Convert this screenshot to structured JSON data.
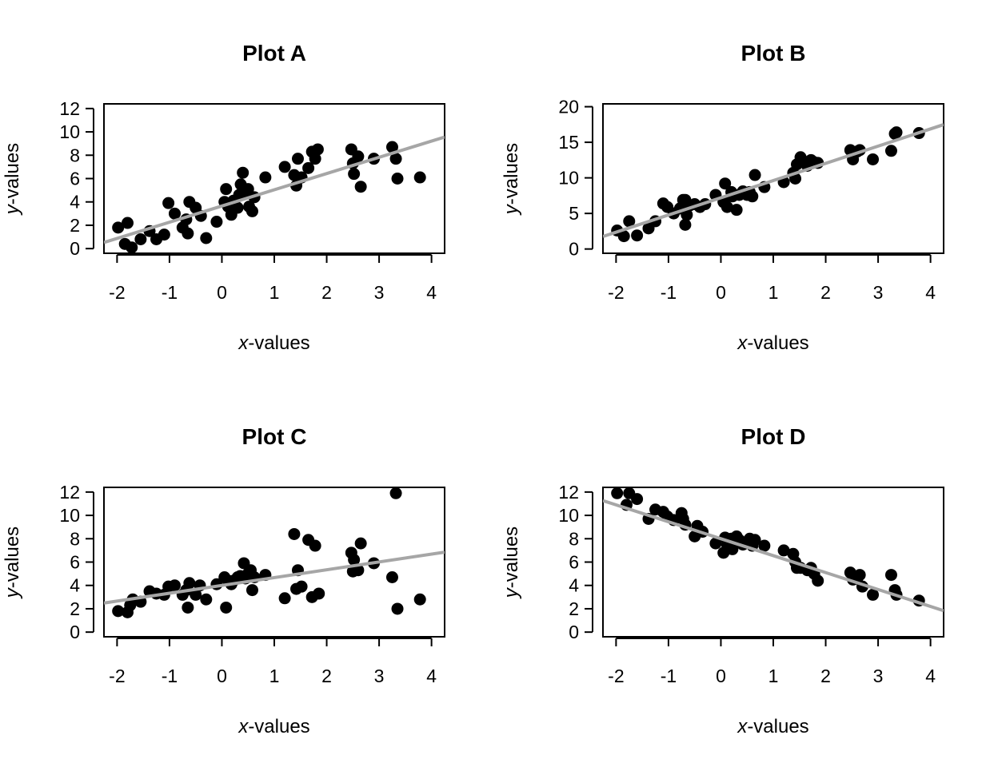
{
  "chart_data": [
    {
      "type": "scatter",
      "title": "Plot A",
      "xlabel_italic": "x",
      "xlabel_rest": "-values",
      "ylabel_italic": "y",
      "ylabel_rest": "-values",
      "xlim": [
        -2.25,
        4.25
      ],
      "ylim": [
        -0.4,
        12.4
      ],
      "xticks": [
        -2,
        -1,
        0,
        1,
        2,
        3,
        4
      ],
      "yticks": [
        0,
        2,
        4,
        6,
        8,
        10,
        12
      ],
      "fit_line": {
        "intercept": 3.65,
        "slope": 1.39
      },
      "points": [
        [
          -1.98,
          1.8
        ],
        [
          -1.85,
          0.4
        ],
        [
          -1.8,
          2.2
        ],
        [
          -1.72,
          0.1
        ],
        [
          -1.55,
          0.8
        ],
        [
          -1.38,
          1.5
        ],
        [
          -1.25,
          0.8
        ],
        [
          -1.1,
          1.2
        ],
        [
          -1.02,
          3.9
        ],
        [
          -0.9,
          3.0
        ],
        [
          -0.75,
          1.8
        ],
        [
          -0.68,
          2.5
        ],
        [
          -0.65,
          1.3
        ],
        [
          -0.62,
          4.0
        ],
        [
          -0.5,
          3.5
        ],
        [
          -0.4,
          2.8
        ],
        [
          -0.3,
          0.9
        ],
        [
          -0.1,
          2.3
        ],
        [
          0.05,
          4.0
        ],
        [
          0.08,
          5.1
        ],
        [
          0.12,
          3.6
        ],
        [
          0.18,
          2.9
        ],
        [
          0.22,
          4.1
        ],
        [
          0.3,
          3.5
        ],
        [
          0.33,
          4.6
        ],
        [
          0.36,
          5.5
        ],
        [
          0.4,
          6.5
        ],
        [
          0.45,
          4.9
        ],
        [
          0.5,
          5.1
        ],
        [
          0.52,
          3.6
        ],
        [
          0.58,
          3.2
        ],
        [
          0.62,
          4.4
        ],
        [
          0.83,
          6.1
        ],
        [
          1.2,
          7.0
        ],
        [
          1.38,
          6.3
        ],
        [
          1.42,
          5.4
        ],
        [
          1.45,
          7.7
        ],
        [
          1.52,
          6.1
        ],
        [
          1.65,
          6.9
        ],
        [
          1.72,
          8.3
        ],
        [
          1.78,
          7.7
        ],
        [
          1.83,
          8.5
        ],
        [
          2.47,
          8.5
        ],
        [
          2.5,
          7.3
        ],
        [
          2.52,
          6.4
        ],
        [
          2.6,
          7.9
        ],
        [
          2.65,
          5.3
        ],
        [
          2.9,
          7.7
        ],
        [
          3.25,
          8.7
        ],
        [
          3.32,
          7.7
        ],
        [
          3.35,
          6.0
        ],
        [
          3.78,
          6.1
        ]
      ]
    },
    {
      "type": "scatter",
      "title": "Plot B",
      "xlabel_italic": "x",
      "xlabel_rest": "-values",
      "ylabel_italic": "y",
      "ylabel_rest": "-values",
      "xlim": [
        -2.25,
        4.25
      ],
      "ylim": [
        -0.6,
        20.4
      ],
      "xticks": [
        -2,
        -1,
        0,
        1,
        2,
        3,
        4
      ],
      "yticks": [
        0,
        5,
        10,
        15,
        20
      ],
      "fit_line": {
        "intercept": 7.2,
        "slope": 2.42
      },
      "points": [
        [
          -1.98,
          2.6
        ],
        [
          -1.85,
          1.8
        ],
        [
          -1.75,
          3.9
        ],
        [
          -1.6,
          1.9
        ],
        [
          -1.38,
          2.9
        ],
        [
          -1.25,
          3.9
        ],
        [
          -1.1,
          6.4
        ],
        [
          -1.02,
          5.9
        ],
        [
          -0.9,
          5.0
        ],
        [
          -0.78,
          5.7
        ],
        [
          -0.72,
          6.9
        ],
        [
          -0.68,
          6.9
        ],
        [
          -0.68,
          3.4
        ],
        [
          -0.65,
          4.8
        ],
        [
          -0.6,
          6.1
        ],
        [
          -0.5,
          6.3
        ],
        [
          -0.4,
          5.9
        ],
        [
          -0.3,
          6.3
        ],
        [
          -0.1,
          7.6
        ],
        [
          0.05,
          6.6
        ],
        [
          0.08,
          9.2
        ],
        [
          0.12,
          5.9
        ],
        [
          0.2,
          8.0
        ],
        [
          0.22,
          7.4
        ],
        [
          0.3,
          5.5
        ],
        [
          0.35,
          7.6
        ],
        [
          0.42,
          8.1
        ],
        [
          0.5,
          7.6
        ],
        [
          0.55,
          8.0
        ],
        [
          0.6,
          7.4
        ],
        [
          0.65,
          10.4
        ],
        [
          0.83,
          8.7
        ],
        [
          1.2,
          9.4
        ],
        [
          1.38,
          10.7
        ],
        [
          1.42,
          9.9
        ],
        [
          1.45,
          11.9
        ],
        [
          1.52,
          12.9
        ],
        [
          1.65,
          11.7
        ],
        [
          1.72,
          12.5
        ],
        [
          1.78,
          12.2
        ],
        [
          1.85,
          12.1
        ],
        [
          2.47,
          13.9
        ],
        [
          2.52,
          12.6
        ],
        [
          2.6,
          13.7
        ],
        [
          2.65,
          13.9
        ],
        [
          2.9,
          12.6
        ],
        [
          3.25,
          13.8
        ],
        [
          3.32,
          16.2
        ],
        [
          3.35,
          16.4
        ],
        [
          3.78,
          16.3
        ]
      ]
    },
    {
      "type": "scatter",
      "title": "Plot C",
      "xlabel_italic": "x",
      "xlabel_rest": "-values",
      "ylabel_italic": "y",
      "ylabel_rest": "-values",
      "xlim": [
        -2.25,
        4.25
      ],
      "ylim": [
        -0.4,
        12.4
      ],
      "xticks": [
        -2,
        -1,
        0,
        1,
        2,
        3,
        4
      ],
      "yticks": [
        0,
        2,
        4,
        6,
        8,
        10,
        12
      ],
      "fit_line": {
        "intercept": 4.0,
        "slope": 0.67
      },
      "points": [
        [
          -1.98,
          1.8
        ],
        [
          -1.8,
          1.7
        ],
        [
          -1.75,
          2.3
        ],
        [
          -1.7,
          2.8
        ],
        [
          -1.55,
          2.6
        ],
        [
          -1.38,
          3.5
        ],
        [
          -1.25,
          3.3
        ],
        [
          -1.1,
          3.2
        ],
        [
          -1.02,
          3.9
        ],
        [
          -0.9,
          4.0
        ],
        [
          -0.75,
          3.2
        ],
        [
          -0.68,
          3.6
        ],
        [
          -0.65,
          2.1
        ],
        [
          -0.62,
          4.2
        ],
        [
          -0.5,
          3.2
        ],
        [
          -0.42,
          4.0
        ],
        [
          -0.3,
          2.8
        ],
        [
          -0.1,
          4.1
        ],
        [
          0.05,
          4.7
        ],
        [
          0.08,
          2.1
        ],
        [
          0.12,
          4.4
        ],
        [
          0.18,
          4.1
        ],
        [
          0.22,
          4.4
        ],
        [
          0.3,
          4.7
        ],
        [
          0.35,
          4.8
        ],
        [
          0.42,
          5.9
        ],
        [
          0.45,
          4.6
        ],
        [
          0.5,
          5.0
        ],
        [
          0.55,
          5.3
        ],
        [
          0.58,
          3.6
        ],
        [
          0.62,
          4.7
        ],
        [
          0.83,
          4.9
        ],
        [
          1.2,
          2.9
        ],
        [
          1.38,
          8.4
        ],
        [
          1.42,
          3.7
        ],
        [
          1.45,
          5.3
        ],
        [
          1.52,
          3.9
        ],
        [
          1.65,
          7.9
        ],
        [
          1.72,
          3.0
        ],
        [
          1.78,
          7.4
        ],
        [
          1.85,
          3.3
        ],
        [
          2.47,
          6.8
        ],
        [
          2.5,
          5.2
        ],
        [
          2.52,
          6.2
        ],
        [
          2.6,
          5.3
        ],
        [
          2.65,
          7.6
        ],
        [
          2.9,
          5.9
        ],
        [
          3.25,
          4.7
        ],
        [
          3.32,
          11.9
        ],
        [
          3.35,
          2.0
        ],
        [
          3.78,
          2.8
        ]
      ]
    },
    {
      "type": "scatter",
      "title": "Plot D",
      "xlabel_italic": "x",
      "xlabel_rest": "-values",
      "ylabel_italic": "y",
      "ylabel_rest": "-values",
      "xlim": [
        -2.25,
        4.25
      ],
      "ylim": [
        -0.4,
        12.4
      ],
      "xticks": [
        -2,
        -1,
        0,
        1,
        2,
        3,
        4
      ],
      "yticks": [
        0,
        2,
        4,
        6,
        8,
        10,
        12
      ],
      "fit_line": {
        "intercept": 8.0,
        "slope": -1.45
      },
      "points": [
        [
          -1.98,
          11.9
        ],
        [
          -1.8,
          10.9
        ],
        [
          -1.75,
          11.9
        ],
        [
          -1.6,
          11.4
        ],
        [
          -1.38,
          9.7
        ],
        [
          -1.25,
          10.5
        ],
        [
          -1.1,
          10.3
        ],
        [
          -1.02,
          9.9
        ],
        [
          -0.9,
          9.6
        ],
        [
          -0.75,
          10.2
        ],
        [
          -0.72,
          9.7
        ],
        [
          -0.68,
          9.2
        ],
        [
          -0.5,
          8.2
        ],
        [
          -0.45,
          9.1
        ],
        [
          -0.35,
          8.6
        ],
        [
          -0.1,
          7.6
        ],
        [
          0.05,
          6.8
        ],
        [
          0.08,
          8.1
        ],
        [
          0.12,
          7.5
        ],
        [
          0.2,
          8.0
        ],
        [
          0.22,
          7.1
        ],
        [
          0.3,
          8.2
        ],
        [
          0.35,
          7.9
        ],
        [
          0.42,
          7.5
        ],
        [
          0.5,
          7.7
        ],
        [
          0.55,
          8.0
        ],
        [
          0.6,
          7.4
        ],
        [
          0.65,
          7.9
        ],
        [
          0.83,
          7.4
        ],
        [
          1.2,
          7.0
        ],
        [
          1.38,
          6.7
        ],
        [
          1.42,
          6.0
        ],
        [
          1.45,
          5.5
        ],
        [
          1.52,
          5.5
        ],
        [
          1.65,
          5.3
        ],
        [
          1.72,
          5.5
        ],
        [
          1.78,
          5.0
        ],
        [
          1.85,
          4.4
        ],
        [
          2.47,
          5.1
        ],
        [
          2.52,
          4.5
        ],
        [
          2.6,
          4.6
        ],
        [
          2.65,
          4.9
        ],
        [
          2.7,
          3.9
        ],
        [
          2.9,
          3.2
        ],
        [
          3.25,
          4.9
        ],
        [
          3.32,
          3.6
        ],
        [
          3.35,
          3.2
        ],
        [
          3.78,
          2.7
        ]
      ]
    }
  ]
}
